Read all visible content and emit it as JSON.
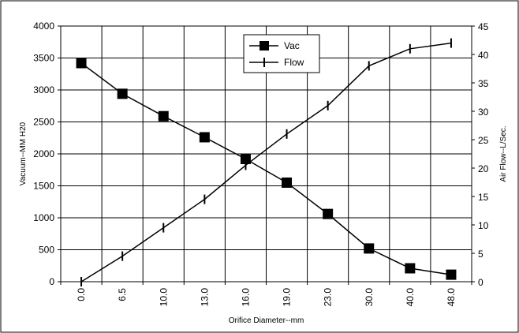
{
  "chart_data": {
    "type": "line",
    "categories": [
      "0.0",
      "6.5",
      "10.0",
      "13.0",
      "16.0",
      "19.0",
      "23.0",
      "30.0",
      "40.0",
      "48.0"
    ],
    "xlabel": "Orifice Diameter--mm",
    "ylabel": "Vacuum--MM H20",
    "y2label": "Air Flow--L/Sec.",
    "ylim": [
      0,
      4000
    ],
    "y2lim": [
      0,
      45
    ],
    "yticks": [
      0,
      500,
      1000,
      1500,
      2000,
      2500,
      3000,
      3500,
      4000
    ],
    "y2ticks": [
      0,
      5,
      10,
      15,
      20,
      25,
      30,
      35,
      40,
      45
    ],
    "grid": true,
    "legend_position": "top-center",
    "series": [
      {
        "name": "Vac",
        "axis": "left",
        "marker": "square",
        "color": "#000000",
        "values": [
          3420,
          2940,
          2590,
          2260,
          1920,
          1550,
          1060,
          520,
          210,
          110
        ]
      },
      {
        "name": "Flow",
        "axis": "right",
        "marker": "vertical-bar",
        "color": "#000000",
        "values": [
          0,
          4.5,
          9.5,
          14.5,
          20.5,
          26,
          31,
          38,
          41,
          42
        ]
      }
    ]
  }
}
